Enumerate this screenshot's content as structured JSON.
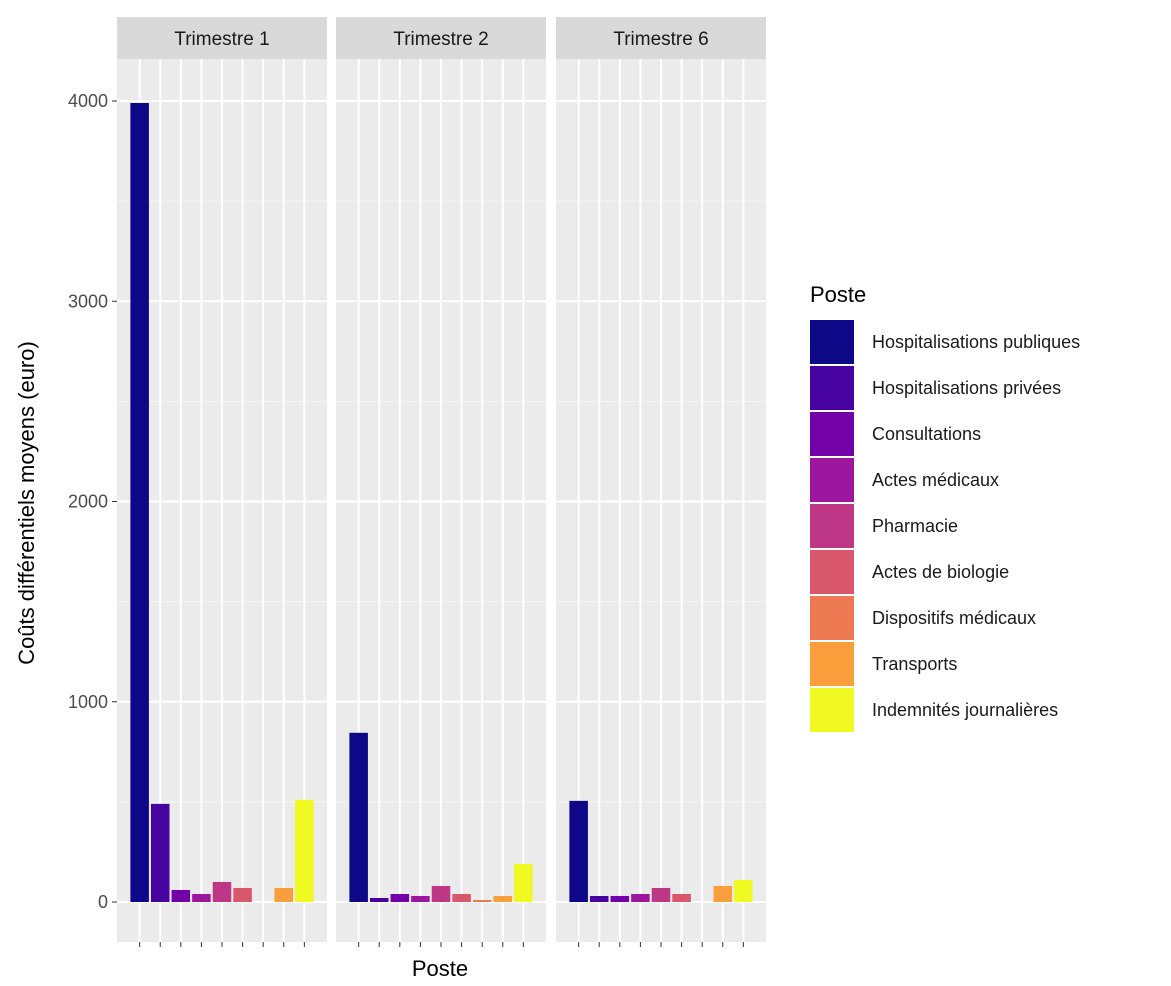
{
  "chart_data": {
    "type": "bar",
    "xlabel": "Poste",
    "ylabel": "Coûts différentiels moyens (euro)",
    "ylim": [
      0,
      4000
    ],
    "y_ticks": [
      0,
      1000,
      2000,
      3000,
      4000
    ],
    "grid": true,
    "legend_position": "right",
    "legend": {
      "title": "Poste",
      "items": [
        {
          "label": "Hospitalisations publiques",
          "color": "#0D0887"
        },
        {
          "label": "Hospitalisations privées",
          "color": "#47039F"
        },
        {
          "label": "Consultations",
          "color": "#7301A8"
        },
        {
          "label": "Actes médicaux",
          "color": "#9C179E"
        },
        {
          "label": "Pharmacie",
          "color": "#BD3786"
        },
        {
          "label": "Actes de biologie",
          "color": "#D8576B"
        },
        {
          "label": "Dispositifs médicaux",
          "color": "#ED7953"
        },
        {
          "label": "Transports",
          "color": "#FA9E3B"
        },
        {
          "label": "Indemnités journalières",
          "color": "#F0F921"
        }
      ]
    },
    "facets": [
      {
        "label": "Trimestre 1",
        "values": [
          3990,
          490,
          60,
          40,
          100,
          70,
          0,
          70,
          510
        ]
      },
      {
        "label": "Trimestre 2",
        "values": [
          845,
          20,
          40,
          30,
          80,
          40,
          10,
          30,
          190
        ]
      },
      {
        "label": "Trimestre 6",
        "values": [
          505,
          30,
          30,
          40,
          70,
          40,
          0,
          80,
          110
        ]
      }
    ]
  }
}
